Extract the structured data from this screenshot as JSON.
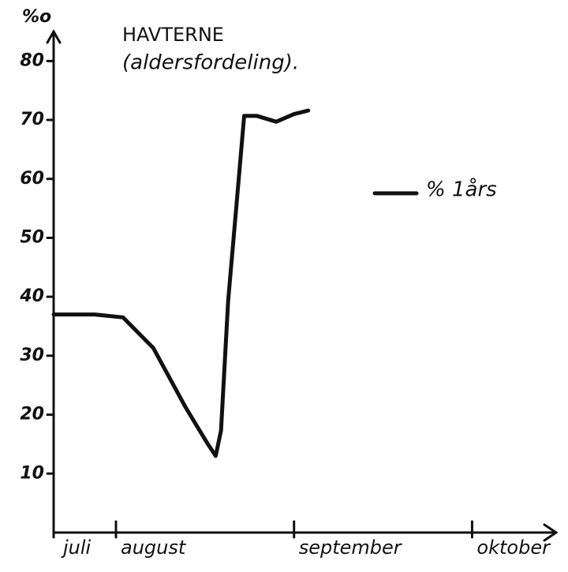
{
  "chart_data": {
    "type": "line",
    "title": "HAVTERNE",
    "subtitle": "(aldersfordeling).",
    "y_label": "%o",
    "x": [
      7.65,
      7.88,
      8.04,
      8.21,
      8.39,
      8.51,
      8.56,
      8.59,
      8.63,
      8.68,
      8.72,
      8.79,
      8.9,
      9.0,
      9.08
    ],
    "series": [
      {
        "name": "% 1års",
        "color": "#111111",
        "values": [
          37,
          37,
          36.5,
          31.3,
          21.3,
          15.3,
          13,
          17.3,
          39.3,
          56.7,
          70.7,
          70.7,
          69.7,
          71,
          71.6
        ]
      }
    ],
    "xlim": [
      7.65,
      10.45
    ],
    "xticks": [
      {
        "value": 7.65,
        "label": "juli"
      },
      {
        "value": 8,
        "label": "august"
      },
      {
        "value": 9,
        "label": "september"
      },
      {
        "value": 10,
        "label": "oktober"
      }
    ],
    "ylim": [
      0,
      85
    ],
    "yticks": [
      10,
      20,
      30,
      40,
      50,
      60,
      70,
      80
    ],
    "grid": false
  }
}
